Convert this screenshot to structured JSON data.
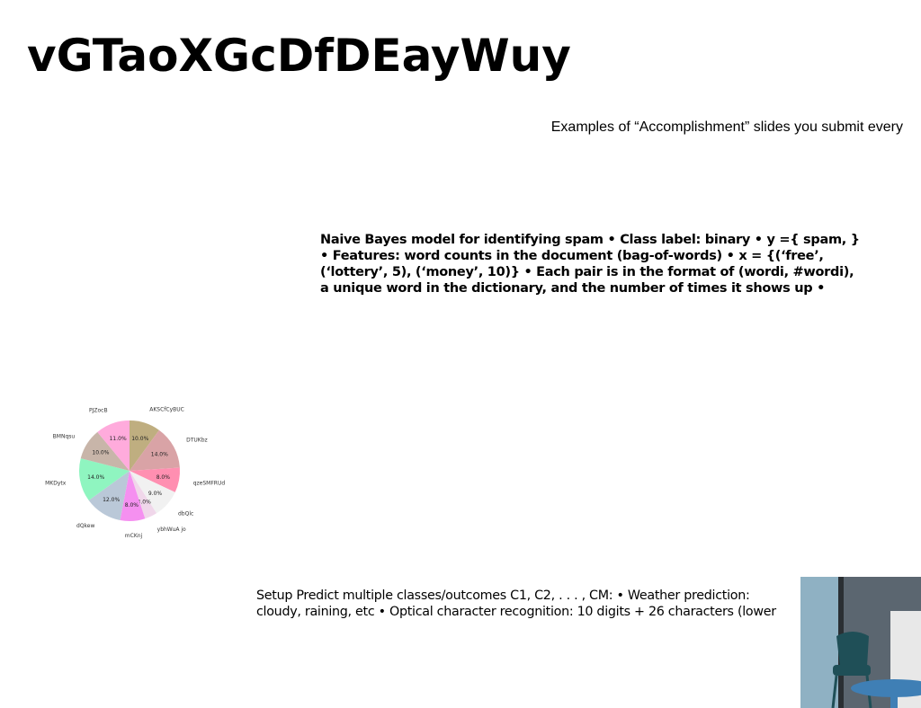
{
  "slide": {
    "title": "vGTaoXGcDfDEayWuy",
    "subtitle": "Examples of “Accomplishment” slides you submit every",
    "naive_bayes_text": "Naive Bayes model for identifying spam • Class label: binary • y ={ spam, } • Features: word counts in the document (bag-of-words) • x = {(‘free’, (‘lottery’, 5), (‘money’, 10)} • Each pair is in the format of (wordi, #wordi), a unique word in the dictionary, and the number of times it shows up •",
    "setup_text": "Setup Predict multiple classes/outcomes C1, C2, . . . , CM: • Weather prediction: cloudy, raining, etc • Optical character recognition: 10 digits + 26 characters (lower"
  },
  "chart_data": {
    "type": "pie",
    "title": "",
    "categories": [
      "AKSCfCyBUC",
      "DTUKbz",
      "qzeSMFRUd",
      "dbQlc",
      "ybhWuA jo",
      "mCKnj",
      "dQkew",
      "XYkMKDytx",
      "BMNqsu",
      "PJZocB"
    ],
    "values": [
      10.0,
      14.0,
      8.0,
      9.0,
      4.0,
      8.0,
      12.0,
      14.0,
      10.0,
      11.0
    ],
    "value_labels": [
      "10.0%",
      "14.0%",
      "8.0%",
      "9.0%",
      "4.0%",
      "8.0%",
      "12.0%",
      "14.0%",
      "10.0%",
      "11.0%"
    ],
    "colors": [
      "#bfae80",
      "#d9a3a6",
      "#ff8fb1",
      "#f1f1f1",
      "#f0d7ea",
      "#f590f0",
      "#bac8d8",
      "#8ff5c0",
      "#c8b5a9",
      "#ffabdc"
    ],
    "legend": "none",
    "start_angle_deg": 0,
    "direction": "clockwise"
  },
  "photo": {
    "icon": "interior-chair-photo",
    "colors": {
      "wall": "#5b6670",
      "window": "#8fb1c3",
      "chair": "#1f4f57",
      "table": "#3f7fb5",
      "radiator": "#e8e8e8"
    }
  }
}
